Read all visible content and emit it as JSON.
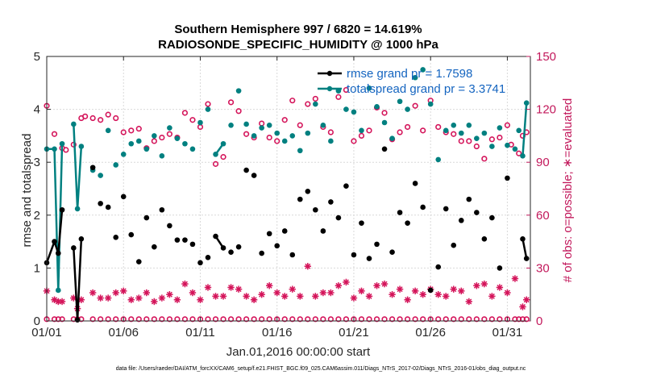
{
  "chart_data": {
    "type": "line",
    "title": "Southern Hemisphere 997 / 6820 = 14.619%",
    "subtitle": "RADIOSONDE_SPECIFIC_HUMIDITY @ 1000 hPa",
    "xlabel": "Jan.01,2016 00:00:00 start",
    "ylabel": "rmse and totalspread",
    "y2label": "# of obs: o=possible; ∗=evaluated",
    "xlim": [
      0,
      31.5
    ],
    "ylim": [
      0,
      5
    ],
    "y2lim": [
      0,
      150
    ],
    "xtick_values": [
      0,
      5,
      10,
      15,
      20,
      25,
      30
    ],
    "xtick_labels": [
      "01/01",
      "01/06",
      "01/11",
      "01/16",
      "01/21",
      "01/26",
      "01/31"
    ],
    "ytick_values": [
      0,
      1,
      2,
      3,
      4,
      5
    ],
    "ytick_labels": [
      "0",
      "1",
      "2",
      "3",
      "4",
      "5"
    ],
    "y2tick_values": [
      0,
      30,
      60,
      90,
      120,
      150
    ],
    "y2tick_labels": [
      "0",
      "30",
      "60",
      "90",
      "120",
      "150"
    ],
    "grid": true,
    "legend_location": "top-right",
    "colors": {
      "rmse": "#000000",
      "spread": "#008080",
      "obs": "#d4145a",
      "axis": "#262626"
    },
    "series": [
      {
        "name": "rmse grand pr = 1.7598",
        "axis": "left",
        "x": [
          0,
          0.25,
          0.5,
          0.75,
          1,
          1.25,
          1.5,
          1.75,
          2,
          2.25,
          2.5,
          2.75,
          3,
          3.5,
          4,
          4.5,
          5,
          5.5,
          6,
          6.5,
          7,
          7.5,
          8,
          8.5,
          9,
          9.5,
          10,
          10.5,
          11,
          11.5,
          12,
          12.5,
          13,
          13.5,
          14,
          14.5,
          15,
          15.5,
          16,
          16.5,
          17,
          17.5,
          18,
          18.5,
          19,
          19.5,
          20,
          20.5,
          21,
          21.5,
          22,
          22.5,
          23,
          23.5,
          24,
          24.5,
          25,
          25.5,
          26,
          26.5,
          27,
          27.5,
          28,
          28.5,
          29,
          29.5,
          30,
          30.25,
          30.5,
          30.75,
          31,
          31.25
        ],
        "values": [
          1.1,
          null,
          1.5,
          1.28,
          2.1,
          null,
          null,
          1.38,
          0.02,
          1.55,
          null,
          null,
          2.9,
          2.22,
          2.15,
          1.58,
          2.35,
          1.63,
          1.12,
          1.95,
          1.4,
          2.1,
          1.8,
          1.53,
          1.53,
          1.45,
          1.1,
          1.2,
          1.6,
          1.38,
          1.3,
          1.4,
          2.85,
          2.75,
          1.28,
          1.65,
          1.42,
          1.7,
          1.25,
          2.3,
          2.45,
          2.1,
          1.7,
          2.25,
          1.95,
          2.55,
          1.25,
          1.85,
          1.18,
          1.45,
          3.25,
          1.3,
          2.05,
          1.85,
          2.6,
          2.15,
          0.58,
          1.02,
          2.12,
          1.43,
          1.9,
          2.3,
          2.05,
          1.55,
          1.95,
          1.0,
          2.7,
          null,
          null,
          null,
          1.55,
          1.18
        ],
        "line_segments": [
          [
            0,
            6
          ],
          [
            7,
            10
          ],
          [
            28,
            29
          ],
          [
            70,
            71
          ]
        ]
      },
      {
        "name": "totalspread grand pr = 3.3741",
        "axis": "left",
        "x": [
          0,
          0.25,
          0.5,
          0.75,
          1,
          1.25,
          1.5,
          1.75,
          2,
          2.25,
          2.5,
          2.75,
          3,
          3.5,
          4,
          4.5,
          5,
          5.5,
          6,
          6.5,
          7,
          7.5,
          8,
          8.5,
          9,
          9.5,
          10,
          10.5,
          11,
          11.5,
          12,
          12.5,
          13,
          13.5,
          14,
          14.5,
          15,
          15.5,
          16,
          16.5,
          17,
          17.5,
          18,
          18.5,
          19,
          19.5,
          20,
          20.5,
          21,
          21.5,
          22,
          22.5,
          23,
          23.5,
          24,
          24.5,
          25,
          25.5,
          26,
          26.5,
          27,
          27.5,
          28,
          28.5,
          29,
          29.5,
          30,
          30.25,
          30.5,
          30.75,
          31,
          31.25
        ],
        "values": [
          3.25,
          null,
          3.25,
          0.58,
          3.35,
          null,
          null,
          3.72,
          2.12,
          3.3,
          null,
          null,
          2.85,
          2.75,
          3.6,
          2.95,
          3.15,
          3.35,
          3.4,
          3.25,
          3.5,
          3.12,
          3.65,
          3.45,
          3.35,
          3.25,
          3.75,
          4.0,
          3.15,
          3.35,
          3.7,
          4.35,
          3.72,
          3.5,
          3.65,
          3.7,
          3.55,
          3.4,
          3.5,
          3.22,
          3.55,
          4.1,
          3.7,
          3.4,
          4.35,
          4.0,
          3.95,
          3.6,
          4.4,
          4.05,
          3.75,
          3.45,
          4.15,
          4.0,
          4.6,
          4.75,
          4.1,
          3.05,
          3.6,
          3.7,
          3.55,
          3.7,
          3.45,
          3.55,
          3.3,
          3.65,
          3.32,
          null,
          3.25,
          3.6,
          3.12,
          4.12
        ],
        "line_segments": [
          [
            0,
            6
          ],
          [
            7,
            10
          ],
          [
            28,
            29
          ],
          [
            70,
            71
          ]
        ]
      },
      {
        "name": "possible obs",
        "axis": "right",
        "x": [
          0,
          0.25,
          0.5,
          0.75,
          1,
          1.25,
          1.5,
          1.75,
          2,
          2.25,
          2.5,
          2.75,
          3,
          3.5,
          4,
          4.5,
          5,
          5.5,
          6,
          6.5,
          7,
          7.5,
          8,
          8.5,
          9,
          9.5,
          10,
          10.5,
          11,
          11.5,
          12,
          12.5,
          13,
          13.5,
          14,
          14.5,
          15,
          15.5,
          16,
          16.5,
          17,
          17.5,
          18,
          18.5,
          19,
          19.5,
          20,
          20.5,
          21,
          21.5,
          22,
          22.5,
          23,
          23.5,
          24,
          24.5,
          25,
          25.5,
          26,
          26.5,
          27,
          27.5,
          28,
          28.5,
          29,
          29.5,
          30,
          30.25,
          30.5,
          30.75,
          31,
          31.25
        ],
        "values": [
          122,
          null,
          106,
          null,
          98,
          97,
          null,
          100,
          null,
          115,
          116,
          null,
          115,
          114,
          117,
          115,
          107,
          108,
          109,
          98,
          102,
          104,
          106,
          104,
          118,
          114,
          110,
          123,
          89,
          93,
          124,
          119,
          106,
          104,
          112,
          104,
          102,
          114,
          125,
          111,
          123,
          126,
          110,
          107,
          127,
          131,
          102,
          105,
          108,
          121,
          118,
          103,
          107,
          110,
          122,
          108,
          125,
          110,
          107,
          106,
          102,
          102,
          99,
          92,
          103,
          104,
          111,
          100,
          null,
          95,
          105,
          107
        ]
      },
      {
        "name": "evaluated obs",
        "axis": "right",
        "x": [
          0,
          0.25,
          0.5,
          0.75,
          1,
          1.25,
          1.5,
          1.75,
          2,
          2.25,
          2.5,
          2.75,
          3,
          3.5,
          4,
          4.5,
          5,
          5.5,
          6,
          6.5,
          7,
          7.5,
          8,
          8.5,
          9,
          9.5,
          10,
          10.5,
          11,
          11.5,
          12,
          12.5,
          13,
          13.5,
          14,
          14.5,
          15,
          15.5,
          16,
          16.5,
          17,
          17.5,
          18,
          18.5,
          19,
          19.5,
          20,
          20.5,
          21,
          21.5,
          22,
          22.5,
          23,
          23.5,
          24,
          24.5,
          25,
          25.5,
          26,
          26.5,
          27,
          27.5,
          28,
          28.5,
          29,
          29.5,
          30,
          30.25,
          30.5,
          30.75,
          31,
          31.25
        ],
        "values": [
          17,
          null,
          12,
          11,
          11,
          null,
          null,
          13,
          7,
          12,
          null,
          null,
          16,
          13,
          13,
          16,
          17,
          12,
          13,
          16,
          11,
          13,
          15,
          12,
          21,
          16,
          12,
          19,
          14,
          14,
          19,
          18,
          14,
          12,
          15,
          20,
          16,
          14,
          18,
          14,
          31,
          14,
          16,
          16,
          20,
          22,
          13,
          17,
          14,
          20,
          21,
          15,
          18,
          12,
          17,
          15,
          18,
          15,
          14,
          18,
          17,
          11,
          20,
          21,
          14,
          19,
          16,
          null,
          24,
          null,
          8,
          12
        ]
      },
      {
        "name": "zero markers",
        "axis": "right",
        "x": [
          0,
          0.25,
          0.5,
          0.75,
          1,
          1.25,
          1.5,
          1.75,
          2,
          2.25,
          2.5,
          2.75,
          3,
          3.5,
          4,
          4.5,
          5,
          5.5,
          6,
          6.5,
          7,
          7.5,
          8,
          8.5,
          9,
          9.5,
          10,
          10.5,
          11,
          11.5,
          12,
          12.5,
          13,
          13.5,
          14,
          14.5,
          15,
          15.5,
          16,
          16.5,
          17,
          17.5,
          18,
          18.5,
          19,
          19.5,
          20,
          20.5,
          21,
          21.5,
          22,
          22.5,
          23,
          23.5,
          24,
          24.5,
          25,
          25.5,
          26,
          26.5,
          27,
          27.5,
          28,
          28.5,
          29,
          29.5,
          30,
          30.25,
          30.5,
          30.75,
          31,
          31.25
        ],
        "values": [
          1,
          null,
          1,
          1,
          1,
          null,
          null,
          1,
          1,
          1,
          null,
          null,
          1,
          1,
          1,
          1,
          1,
          1,
          1,
          1,
          1,
          1,
          1,
          1,
          1,
          1,
          1,
          1,
          1,
          1,
          1,
          1,
          1,
          1,
          1,
          1,
          1,
          1,
          1,
          1,
          1,
          1,
          1,
          1,
          1,
          1,
          1,
          1,
          1,
          1,
          1,
          1,
          1,
          1,
          1,
          1,
          1,
          1,
          1,
          1,
          1,
          1,
          1,
          1,
          1,
          1,
          1,
          null,
          1,
          1,
          1,
          1
        ]
      }
    ],
    "legend": [
      {
        "label": "rmse grand pr = 1.7598",
        "color": "#000000"
      },
      {
        "label": "totalspread grand pr = 3.3741",
        "color": "#008080"
      }
    ],
    "footer": "data file: /Users/raeder/DAI/ATM_forcXX/CAM6_setup/f.e21.FHIST_BGC.f09_025.CAM6assim.011/Diags_NTrS_2017-02/Diags_NTrS_2016-01/obs_diag_output.nc"
  }
}
